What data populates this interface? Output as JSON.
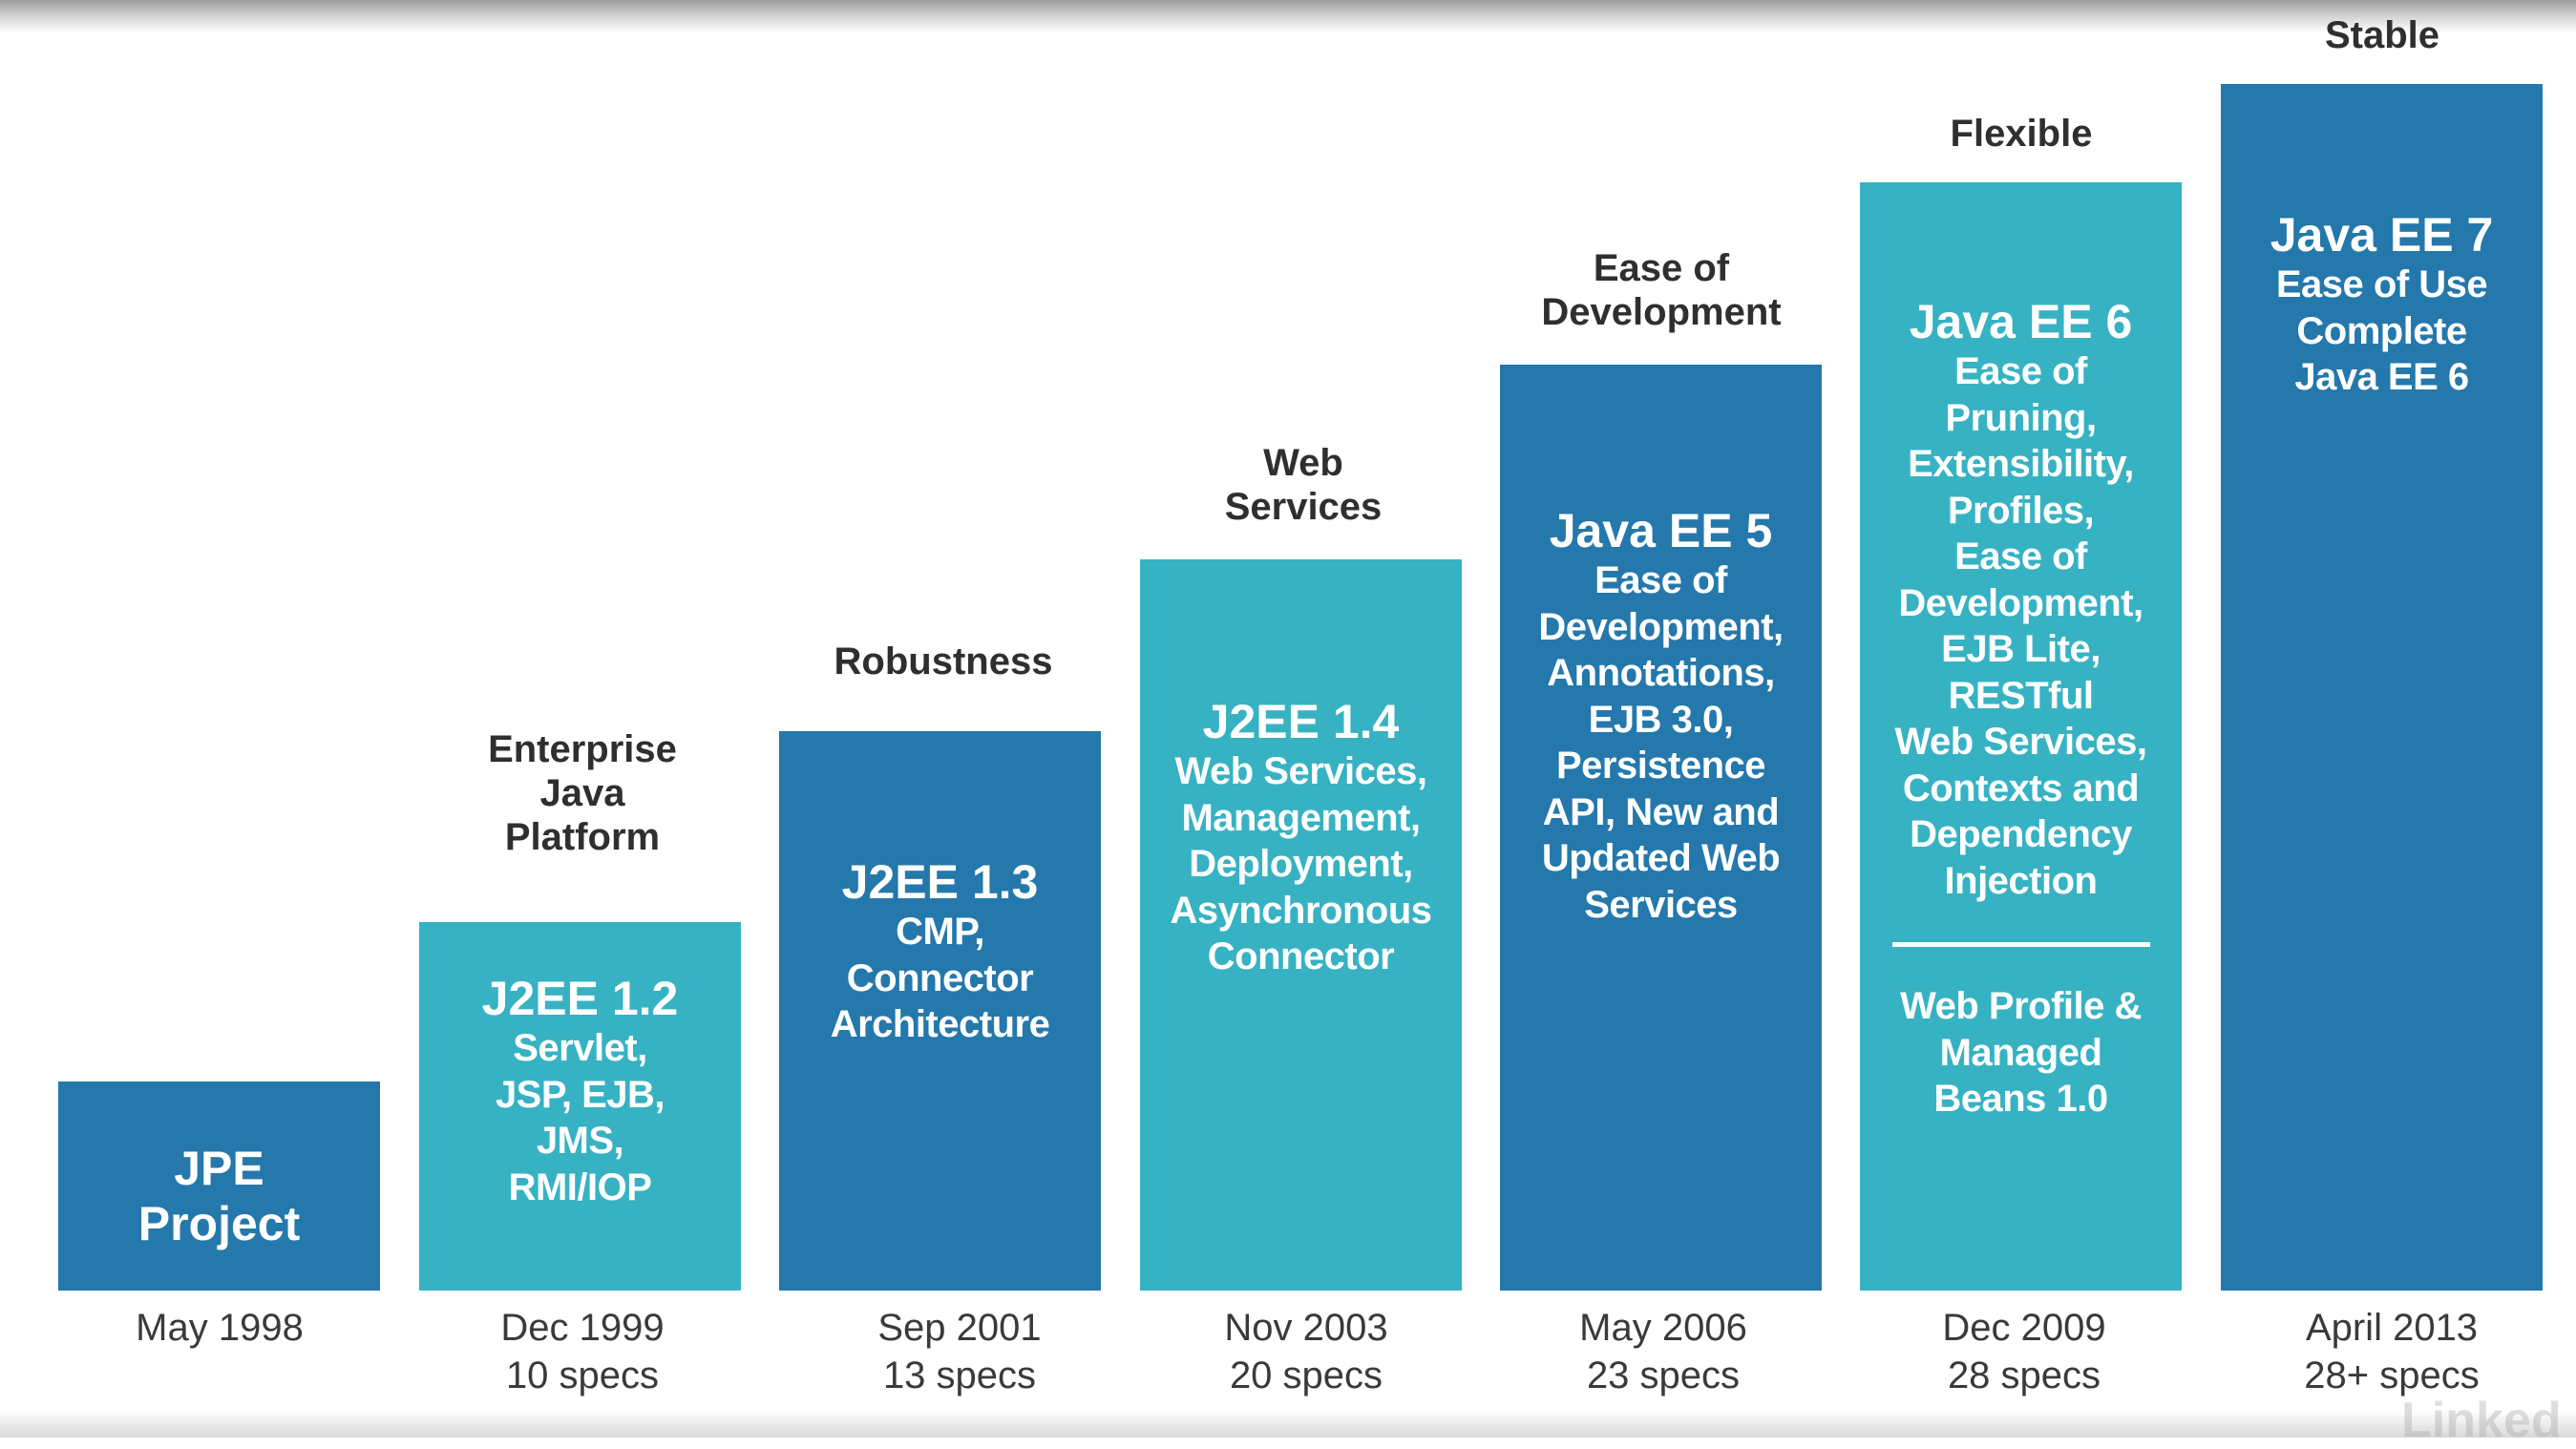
{
  "diagram": {
    "columns": [
      {
        "top_label": "",
        "title": "JPE\nProject",
        "text": "",
        "date": "May 1998",
        "specs": ""
      },
      {
        "top_label": "Enterprise\nJava\nPlatform",
        "title": "J2EE 1.2",
        "text": "Servlet,\nJSP, EJB,\nJMS,\nRMI/IOP",
        "date": "Dec 1999",
        "specs": "10 specs"
      },
      {
        "top_label": "Robustness",
        "title": "J2EE 1.3",
        "text": "CMP,\nConnector\nArchitecture",
        "date": "Sep 2001",
        "specs": "13 specs"
      },
      {
        "top_label": "Web\nServices",
        "title": "J2EE 1.4",
        "text": "Web Services,\nManagement,\nDeployment,\nAsynchronous\nConnector",
        "date": "Nov 2003",
        "specs": "20 specs"
      },
      {
        "top_label": "Ease of\nDevelopment",
        "title": "Java EE 5",
        "text": "Ease of\nDevelopment,\nAnnotations,\nEJB 3.0,\nPersistence\nAPI, New and\nUpdated Web\nServices",
        "date": "May 2006",
        "specs": "23 specs"
      },
      {
        "top_label": "Flexible",
        "title": "Java EE 6",
        "text": "Ease of\nPruning,\nExtensibility,\nProfiles,\nEase of\nDevelopment,\nEJB Lite,\nRESTful\nWeb Services,\nContexts and\nDependency\nInjection",
        "extra_text": "Web Profile &\nManaged\nBeans 1.0",
        "date": "Dec 2009",
        "specs": "28 specs"
      },
      {
        "top_label": "Stable",
        "title": "Java EE 7",
        "text": "Ease of Use\nComplete\nJava EE 6",
        "date": "April 2013",
        "specs": "28+ specs"
      }
    ],
    "watermark": "Linked",
    "colors": {
      "dark_bar": "#2478ab",
      "light_bar": "#36b2c3",
      "label_text": "#2f2f2f"
    }
  }
}
